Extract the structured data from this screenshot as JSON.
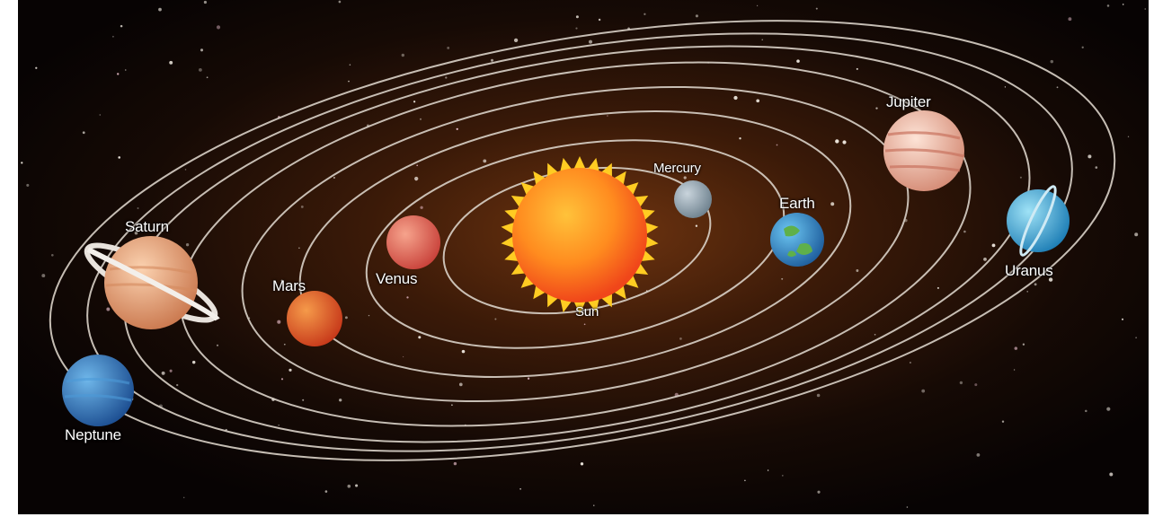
{
  "labels": {
    "sun": "Sun",
    "mercury": "Mercury",
    "venus": "Venus",
    "earth": "Earth",
    "mars": "Mars",
    "jupiter": "Jupiter",
    "saturn": "Saturn",
    "uranus": "Uranus",
    "neptune": "Neptune"
  },
  "colors": {
    "space": "#0d0604",
    "glow": "#7a3a0e",
    "orbit": "#d9d1c7",
    "sun_core": "#ff8a1e",
    "sun_rays": "#ffcc22",
    "mercury": "#8fa1ad",
    "venus": "#e0665a",
    "earth": "#2e86c8",
    "mars": "#e0551e",
    "jupiter": "#e8b49a",
    "saturn": "#e8a77a",
    "uranus": "#3aa6d6",
    "neptune": "#2a74b4"
  }
}
